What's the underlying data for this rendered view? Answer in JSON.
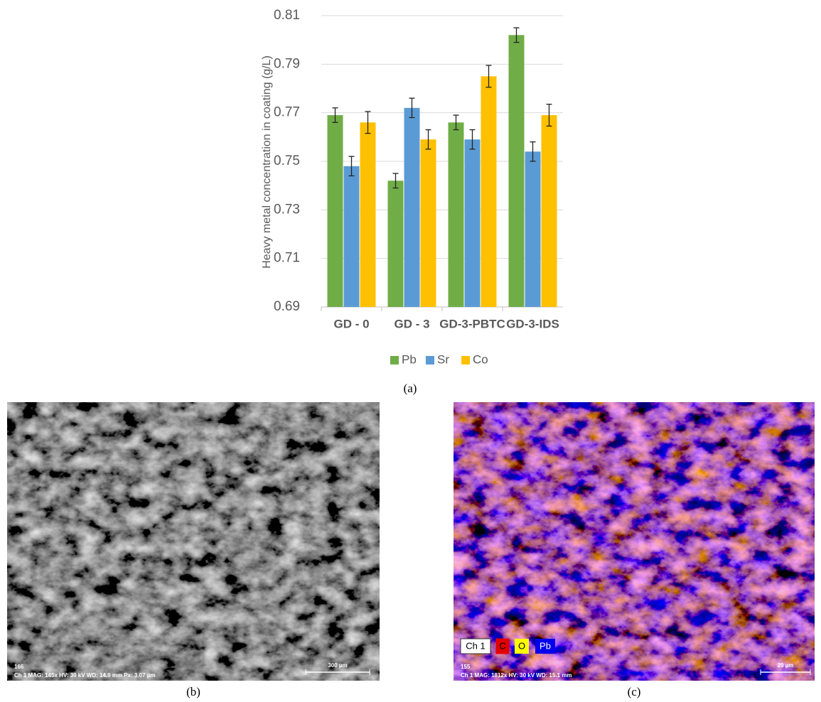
{
  "chart_data": {
    "type": "bar",
    "y_label": "Heavy metal concentration in coating (g/L)",
    "categories": [
      "GD - 0",
      "GD - 3",
      "GD-3-PBTC",
      "GD-3-IDS"
    ],
    "series": [
      {
        "name": "Pb",
        "color": "#70ad47",
        "values": [
          0.769,
          0.742,
          0.766,
          0.802
        ],
        "errors": [
          0.003,
          0.003,
          0.003,
          0.003
        ]
      },
      {
        "name": "Sr",
        "color": "#5b9bd5",
        "values": [
          0.748,
          0.772,
          0.759,
          0.754
        ],
        "errors": [
          0.004,
          0.004,
          0.004,
          0.004
        ]
      },
      {
        "name": "Co",
        "color": "#ffc000",
        "values": [
          0.766,
          0.759,
          0.785,
          0.769
        ],
        "errors": [
          0.0045,
          0.004,
          0.0045,
          0.0045
        ]
      }
    ],
    "ylim": [
      0.69,
      0.81
    ],
    "yticks": [
      0.69,
      0.71,
      0.73,
      0.75,
      0.77,
      0.79,
      0.81
    ],
    "grid": true,
    "legend": "bottom"
  },
  "captions": [
    "(a)",
    "(b)",
    "(c)"
  ],
  "sem_b": {
    "frame_number": "166",
    "info": "Ch 1   MAG: 145x   HV: 30 kV   WD: 14.9 mm   Px: 3.07 µm",
    "scale": "300 µm"
  },
  "sem_c": {
    "channels": [
      "Ch 1",
      "C",
      "O",
      "Pb"
    ],
    "frame_number": "155",
    "info": "Ch 1   MAG: 1812x   HV: 30 kV   WD: 15.1 mm",
    "scale": "20 µm"
  }
}
